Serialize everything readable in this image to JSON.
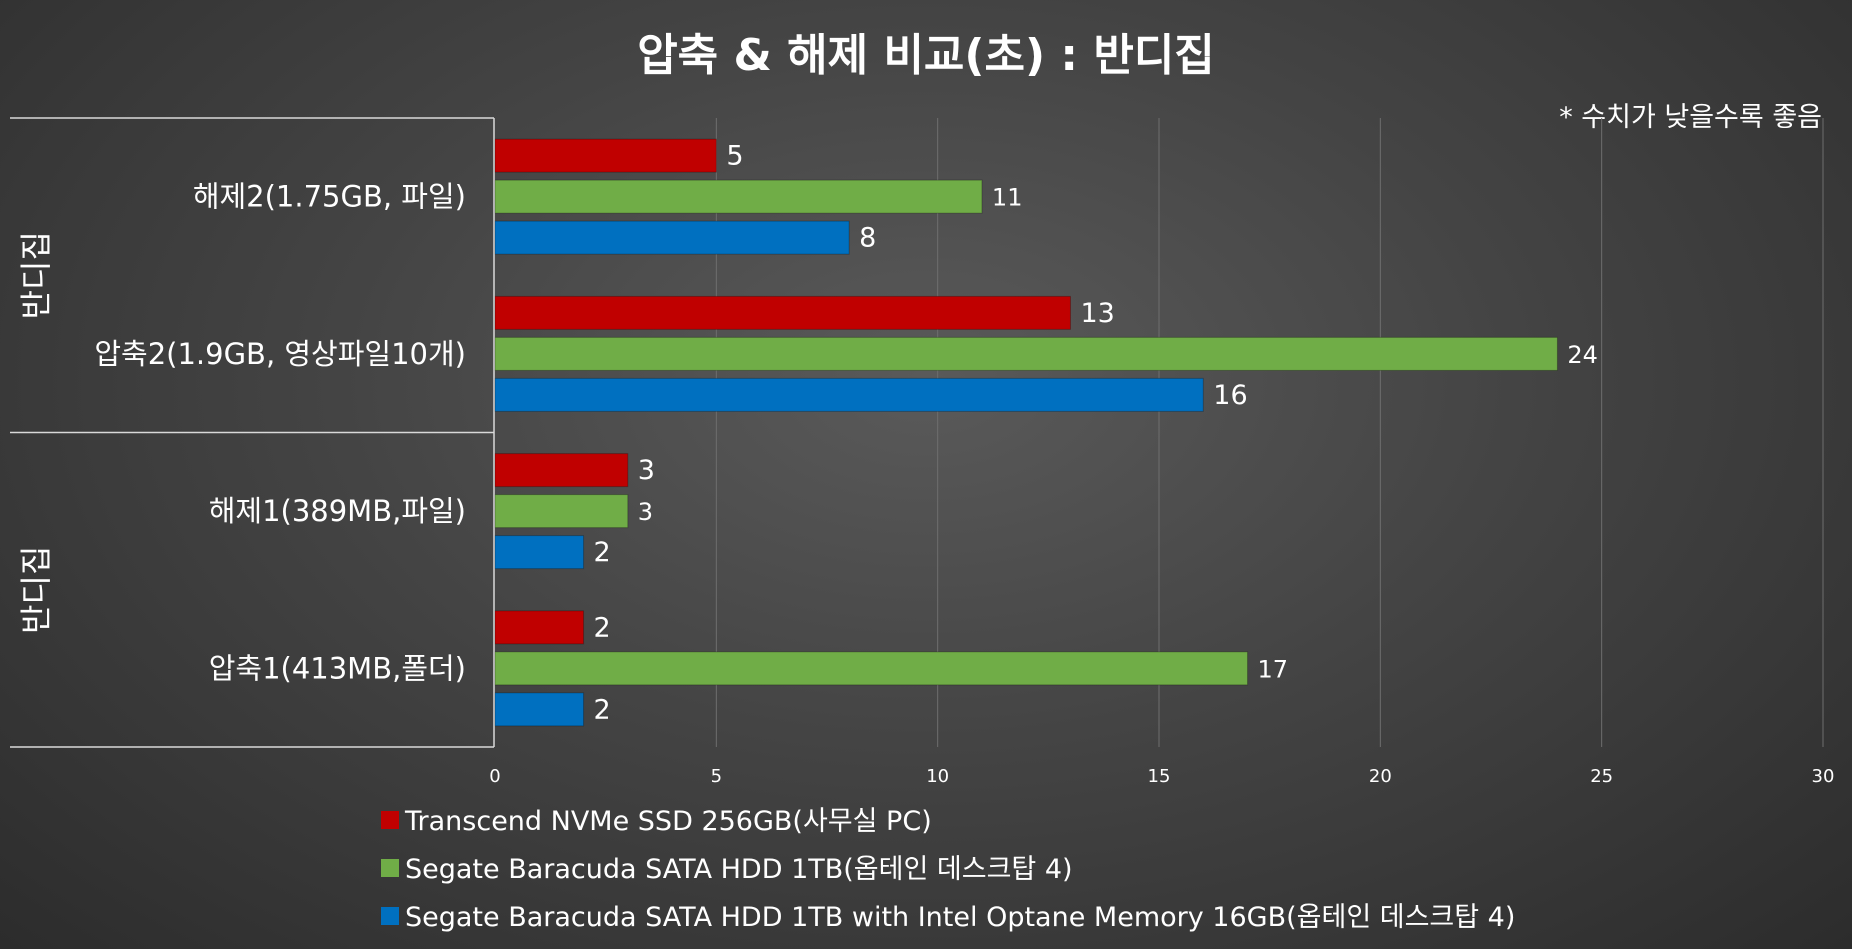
{
  "chart_data": {
    "type": "bar",
    "orientation": "horizontal",
    "title": "압축 & 해제 비교(초) : 반디집",
    "note": "* 수치가 낮을수록 좋음",
    "groups": [
      {
        "label": "반디집",
        "categories": [
          "해제2(1.75GB, 파일)",
          "압축2(1.9GB, 영상파일10개)"
        ]
      },
      {
        "label": "반디집",
        "categories": [
          "해제1(389MB,파일)",
          "압축1(413MB,폴더)"
        ]
      }
    ],
    "categories": [
      "해제2(1.75GB, 파일)",
      "압축2(1.9GB, 영상파일10개)",
      "해제1(389MB,파일)",
      "압축1(413MB,폴더)"
    ],
    "series": [
      {
        "name": "Transcend NVMe SSD 256GB(사무실 PC)",
        "color": "#c00000",
        "values": [
          5,
          13,
          3,
          2
        ]
      },
      {
        "name": "Segate Baracuda SATA HDD 1TB(옵테인 데스크탑 4)",
        "color": "#70ad47",
        "values": [
          11,
          24,
          3,
          17
        ]
      },
      {
        "name": "Segate Baracuda SATA HDD 1TB with Intel Optane Memory 16GB(옵테인 데스크탑 4)",
        "color": "#0070c0",
        "values": [
          8,
          16,
          2,
          2
        ]
      }
    ],
    "xlim": [
      0,
      30
    ],
    "xticks": [
      0,
      5,
      10,
      15,
      20,
      25,
      30
    ],
    "grid": true,
    "legend_position": "bottom-left"
  }
}
